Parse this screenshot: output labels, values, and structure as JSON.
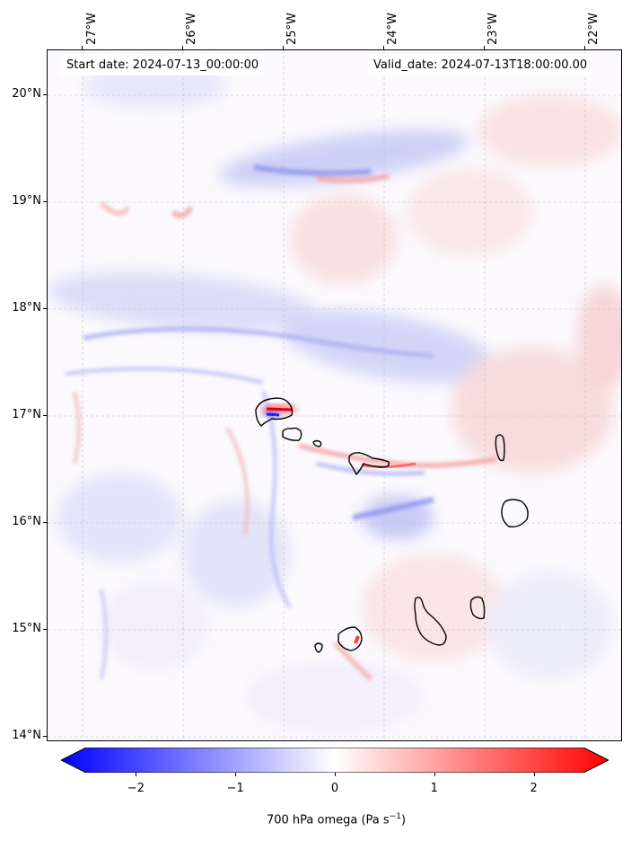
{
  "map": {
    "start_date": "Start date: 2024-07-13_00:00:00",
    "valid_date": "Valid_date: 2024-07-13T18:00:00.00",
    "lon_labels": [
      "27°W",
      "26°W",
      "25°W",
      "24°W",
      "23°W",
      "22°W"
    ],
    "lat_labels": [
      "20°N",
      "19°N",
      "18°N",
      "17°N",
      "16°N",
      "15°N",
      "14°N"
    ],
    "extent": {
      "lon_min": -27.35,
      "lon_max": -21.7,
      "lat_min": 13.95,
      "lat_max": 20.45
    },
    "field_colors": {
      "negative": "#0000ff",
      "neutral": "#ffffff",
      "positive": "#ff0000"
    }
  },
  "colorbar": {
    "tick_labels": [
      "−2",
      "−1",
      "0",
      "1",
      "2"
    ],
    "tick_values": [
      -2,
      -1,
      0,
      1,
      2
    ],
    "range": [
      -2.5,
      2.5
    ],
    "title": "700 hPa omega (Pa s",
    "title_sup": "−1",
    "title_end": ")"
  }
}
